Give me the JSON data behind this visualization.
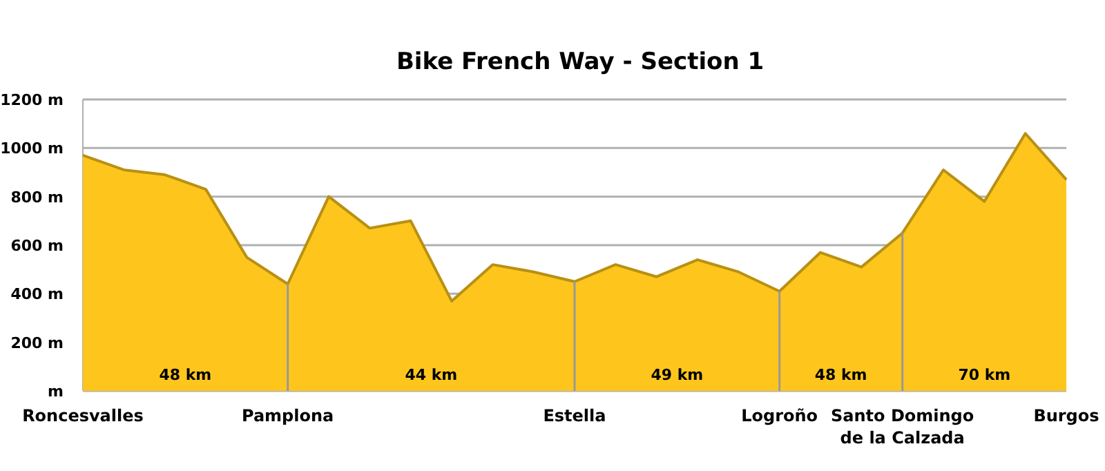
{
  "chart_data": {
    "type": "area",
    "title": "Bike French Way - Section 1",
    "categories": [
      "Roncesvalles",
      null,
      null,
      null,
      null,
      "Pamplona",
      null,
      null,
      null,
      null,
      null,
      null,
      "Estella",
      null,
      null,
      null,
      null,
      "Logroño",
      null,
      null,
      "Santo Domingo\nde la Calzada",
      null,
      null,
      null,
      "Burgos"
    ],
    "series": [
      {
        "color": "#fec61c",
        "values": [
          970,
          910,
          890,
          830,
          550,
          440,
          800,
          670,
          700,
          370,
          520,
          490,
          450,
          520,
          470,
          540,
          490,
          410,
          570,
          510,
          650,
          910,
          780,
          1060,
          870
        ]
      }
    ],
    "ylim": [
      0,
      1200
    ],
    "yticks": [
      {
        "value": 0,
        "label": "m"
      },
      {
        "value": 200,
        "label": "200 m"
      },
      {
        "value": 400,
        "label": "400 m"
      },
      {
        "value": 600,
        "label": "600 m"
      },
      {
        "value": 800,
        "label": "800 m"
      },
      {
        "value": 1000,
        "label": "1000 m"
      },
      {
        "value": 1200,
        "label": "1200 m"
      }
    ],
    "annotations": [
      "48 km",
      "44 km",
      "49 km",
      "48 km",
      "70 km"
    ],
    "grid": "y"
  }
}
